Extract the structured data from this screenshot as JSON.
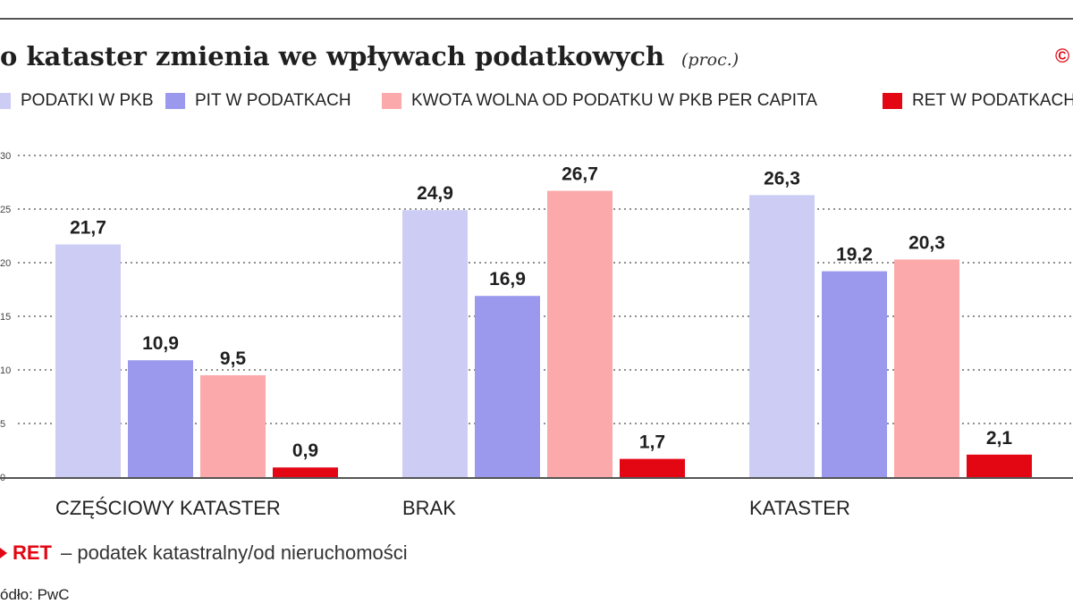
{
  "title": "o kataster zmienia we wpływach podatkowych",
  "subtitle": "(proc.)",
  "logo": {
    "text": "©",
    "color": "#e30613"
  },
  "legend": [
    {
      "label": "PODATKI W PKB",
      "color": "#ccccf5"
    },
    {
      "label": "PIT W PODATKACH",
      "color": "#9a99ee"
    },
    {
      "label": "KWOTA WOLNA OD PODATKU W PKB PER CAPITA",
      "color": "#fba9aa"
    },
    {
      "label": "RET W PODATKACH",
      "color": "#e30613"
    }
  ],
  "note": {
    "key": "RET",
    "text": "– podatek katastralny/od nieruchomości"
  },
  "source": "ódło: PwC",
  "chart_data": {
    "type": "bar",
    "categories": [
      "CZĘŚCIOWY KATASTER",
      "BRAK",
      "KATASTER"
    ],
    "series": [
      {
        "name": "PODATKI W PKB",
        "color": "#ccccf5",
        "values": [
          21.7,
          24.9,
          26.3
        ]
      },
      {
        "name": "PIT W PODATKACH",
        "color": "#9a99ee",
        "values": [
          10.9,
          16.9,
          19.2
        ]
      },
      {
        "name": "KWOTA WOLNA OD PODATKU W PKB PER CAPITA",
        "color": "#fba9aa",
        "values": [
          9.5,
          26.7,
          20.3
        ]
      },
      {
        "name": "RET W PODATKACH",
        "color": "#e30613",
        "values": [
          0.9,
          1.7,
          2.1
        ]
      }
    ],
    "value_labels": [
      [
        "21,7",
        "24,9",
        "26,3"
      ],
      [
        "10,9",
        "16,9",
        "19,2"
      ],
      [
        "9,5",
        "26,7",
        "20,3"
      ],
      [
        "0,9",
        "1,7",
        "2,1"
      ]
    ],
    "yticks": [
      0,
      5,
      10,
      15,
      20,
      25,
      30
    ],
    "ytick_labels": [
      "0",
      "5",
      "10",
      "15",
      "20",
      "25",
      "30"
    ],
    "ylim": [
      0,
      30
    ],
    "grid": true,
    "legend_position": "top"
  }
}
